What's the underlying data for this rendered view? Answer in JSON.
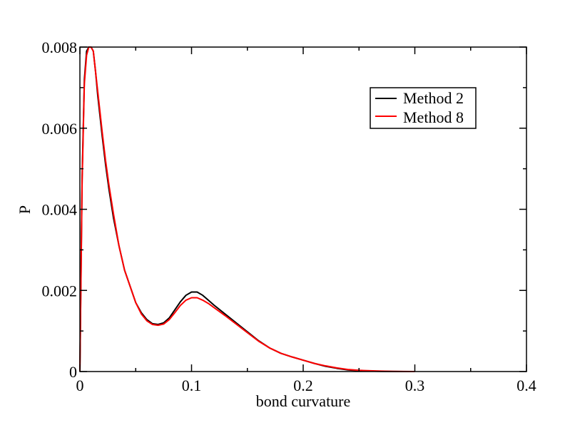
{
  "chart_data": {
    "type": "line",
    "title": "",
    "xlabel": "bond curvature",
    "ylabel": "P",
    "xlim": [
      0,
      0.4
    ],
    "ylim": [
      0,
      0.008
    ],
    "x_ticks": [
      0,
      0.1,
      0.2,
      0.3,
      0.4
    ],
    "x_tick_labels": [
      "0",
      "0.1",
      "0.2",
      "0.3",
      "0.4"
    ],
    "y_ticks": [
      0,
      0.002,
      0.004,
      0.006,
      0.008
    ],
    "y_tick_labels": [
      "0",
      "0.002",
      "0.004",
      "0.006",
      "0.008"
    ],
    "grid": false,
    "legend": {
      "position": "top-right"
    },
    "series": [
      {
        "name": "Method 2",
        "color": "#000000",
        "x": [
          0,
          0.002,
          0.004,
          0.006,
          0.008,
          0.01,
          0.012,
          0.014,
          0.016,
          0.018,
          0.02,
          0.023,
          0.026,
          0.03,
          0.035,
          0.04,
          0.045,
          0.05,
          0.055,
          0.06,
          0.065,
          0.07,
          0.075,
          0.08,
          0.085,
          0.09,
          0.095,
          0.1,
          0.105,
          0.11,
          0.115,
          0.12,
          0.13,
          0.14,
          0.15,
          0.16,
          0.17,
          0.18,
          0.19,
          0.2,
          0.21,
          0.22,
          0.23,
          0.24,
          0.25,
          0.26,
          0.27,
          0.28,
          0.29,
          0.3
        ],
        "y": [
          0,
          0.0048,
          0.0072,
          0.0079,
          0.0081,
          0.0081,
          0.0079,
          0.0074,
          0.0068,
          0.0063,
          0.0058,
          0.0051,
          0.0045,
          0.0038,
          0.0031,
          0.0025,
          0.0021,
          0.0017,
          0.00145,
          0.00128,
          0.00118,
          0.00116,
          0.0012,
          0.00132,
          0.00152,
          0.00172,
          0.00188,
          0.00196,
          0.00196,
          0.00188,
          0.00176,
          0.00164,
          0.00142,
          0.0012,
          0.00098,
          0.00076,
          0.00058,
          0.00045,
          0.00036,
          0.00028,
          0.0002,
          0.00013,
          8e-05,
          4e-05,
          2e-05,
          1e-05,
          5e-06,
          2e-06,
          1e-06,
          0
        ]
      },
      {
        "name": "Method 8",
        "color": "#ff0000",
        "x": [
          0,
          0.002,
          0.004,
          0.006,
          0.008,
          0.01,
          0.012,
          0.014,
          0.016,
          0.018,
          0.02,
          0.023,
          0.026,
          0.03,
          0.035,
          0.04,
          0.045,
          0.05,
          0.055,
          0.06,
          0.065,
          0.07,
          0.075,
          0.08,
          0.085,
          0.09,
          0.095,
          0.1,
          0.105,
          0.11,
          0.115,
          0.12,
          0.13,
          0.14,
          0.15,
          0.16,
          0.17,
          0.18,
          0.19,
          0.2,
          0.21,
          0.22,
          0.23,
          0.24,
          0.25,
          0.26,
          0.27,
          0.28,
          0.29,
          0.3
        ],
        "y": [
          0,
          0.0047,
          0.0071,
          0.0078,
          0.0081,
          0.0081,
          0.0079,
          0.0074,
          0.0069,
          0.0064,
          0.0059,
          0.0052,
          0.0046,
          0.0039,
          0.0031,
          0.0025,
          0.0021,
          0.0017,
          0.00142,
          0.00125,
          0.00116,
          0.00114,
          0.00117,
          0.00128,
          0.00145,
          0.00163,
          0.00176,
          0.00182,
          0.00182,
          0.00176,
          0.00168,
          0.00158,
          0.00138,
          0.00117,
          0.00096,
          0.00075,
          0.00058,
          0.00045,
          0.00036,
          0.00028,
          0.0002,
          0.00014,
          9e-05,
          5e-05,
          3e-05,
          2e-05,
          1e-05,
          5e-06,
          2e-06,
          0
        ]
      }
    ]
  }
}
